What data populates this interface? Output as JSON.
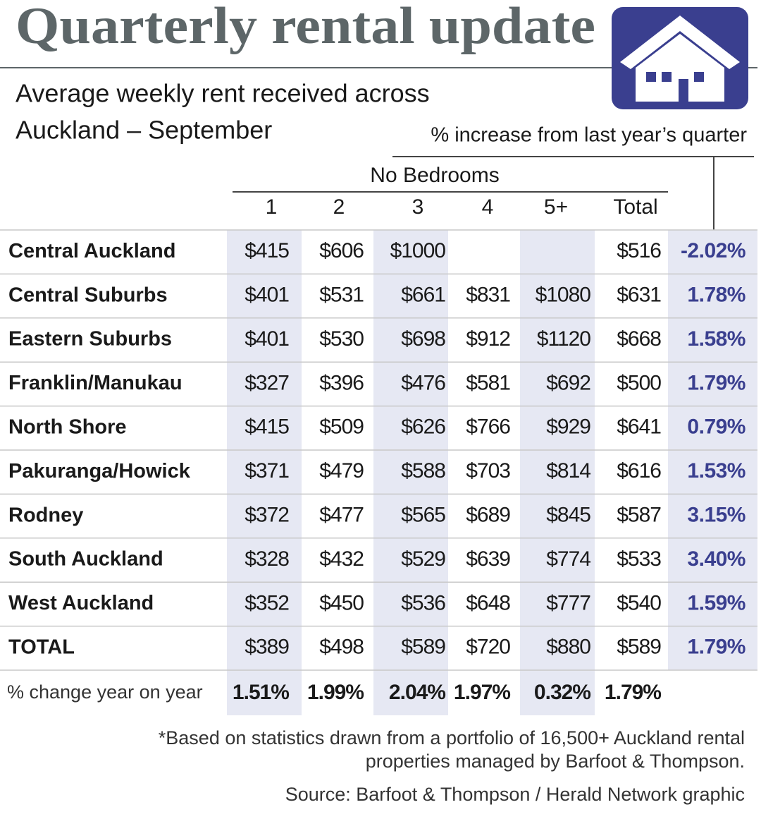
{
  "header": {
    "title": "Quarterly rental update",
    "subtitle": [
      "Average weekly rent received across",
      "Auckland – September"
    ],
    "change_note": "% increase from last year’s quarter"
  },
  "table": {
    "group_label": "No Bedrooms",
    "columns": [
      "1",
      "2",
      "3",
      "4",
      "5+",
      "Total"
    ],
    "rows": [
      [
        "Central Auckland",
        "$415",
        "$606",
        "$1000",
        null,
        null,
        "$516",
        "-2.02%"
      ],
      [
        "Central Suburbs",
        "$401",
        "$531",
        "$661",
        "$831",
        "$1080",
        "$631",
        "1.78%"
      ],
      [
        "Eastern Suburbs",
        "$401",
        "$530",
        "$698",
        "$912",
        "$1120",
        "$668",
        "1.58%"
      ],
      [
        "Franklin/Manukau",
        "$327",
        "$396",
        "$476",
        "$581",
        "$692",
        "$500",
        "1.79%"
      ],
      [
        "North Shore",
        "$415",
        "$509",
        "$626",
        "$766",
        "$929",
        "$641",
        "0.79%"
      ],
      [
        "Pakuranga/Howick",
        "$371",
        "$479",
        "$588",
        "$703",
        "$814",
        "$616",
        "1.53%"
      ],
      [
        "Rodney",
        "$372",
        "$477",
        "$565",
        "$689",
        "$845",
        "$587",
        "3.15%"
      ],
      [
        "South Auckland",
        "$328",
        "$432",
        "$529",
        "$639",
        "$774",
        "$533",
        "3.40%"
      ],
      [
        "West Auckland",
        "$352",
        "$450",
        "$536",
        "$648",
        "$777",
        "$540",
        "1.59%"
      ],
      [
        "TOTAL",
        "$389",
        "$498",
        "$589",
        "$720",
        "$880",
        "$589",
        "1.79%"
      ]
    ],
    "change_row": {
      "label": "% change year on year",
      "values": [
        "1.51%",
        "1.99%",
        "2.04%",
        "1.97%",
        "0.32%",
        "1.79%"
      ]
    }
  },
  "footer": {
    "note": [
      "*Based on statistics drawn from a portfolio of 16,500+ Auckland rental",
      "properties managed by Barfoot & Thompson."
    ],
    "source": "Source: Barfoot & Thompson / Herald Network graphic"
  }
}
